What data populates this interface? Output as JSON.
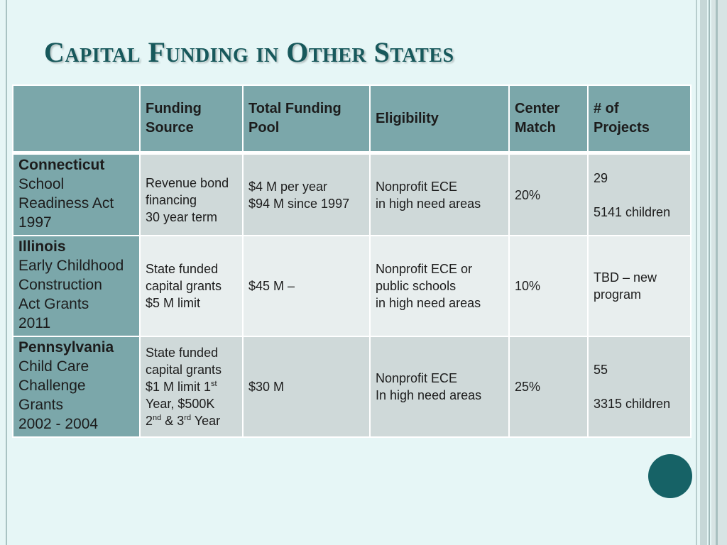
{
  "title": "Capital Funding in Other States",
  "headers": {
    "blank": "",
    "funding_source": [
      "Funding",
      "Source"
    ],
    "total_pool": [
      "Total Funding",
      "Pool"
    ],
    "eligibility": "Eligibility",
    "center_match": [
      "Center",
      "Match"
    ],
    "projects": [
      "# of",
      "Projects"
    ]
  },
  "rows": [
    {
      "state": "Connecticut",
      "program": [
        "School",
        "Readiness Act",
        "1997"
      ],
      "funding_source": [
        "Revenue bond",
        "financing",
        "30 year term"
      ],
      "total_pool": [
        "$4 M per year",
        "$94 M since 1997"
      ],
      "eligibility": [
        "Nonprofit ECE",
        "in high need areas"
      ],
      "center_match": "20%",
      "projects": [
        "29",
        "5141 children"
      ]
    },
    {
      "state": "Illinois",
      "program": [
        "Early Childhood",
        "Construction",
        "Act Grants",
        "2011"
      ],
      "funding_source": [
        "State funded",
        "capital grants",
        "$5 M limit"
      ],
      "total_pool": [
        "$45 M –"
      ],
      "eligibility": [
        "Nonprofit ECE or",
        "public schools",
        "in high need areas"
      ],
      "center_match": "10%",
      "projects": [
        "TBD – new",
        "program"
      ]
    },
    {
      "state": "Pennsylvania",
      "program": [
        "Child Care",
        "Challenge",
        "Grants",
        "2002 - 2004"
      ],
      "funding_source": {
        "line1": "State funded",
        "line2": "capital grants",
        "line3": "$1 M limit 1",
        "line3_sup": "st",
        "line4": "Year, $500K",
        "line5_a": "2",
        "line5_a_sup": "nd",
        "line5_b": " & 3",
        "line5_b_sup": "rd",
        "line5_c": " Year"
      },
      "total_pool": [
        "$30 M"
      ],
      "eligibility": [
        "Nonprofit ECE",
        "In high need areas"
      ],
      "center_match": "25%",
      "projects": [
        "55",
        "3315 children"
      ]
    }
  ],
  "colors": {
    "background": "#e6f6f6",
    "title": "#17585b",
    "header_fill": "#7ba7aa",
    "row_fill_dark": "#cfd9d9",
    "row_fill_light": "#e8eeee",
    "accent_circle": "#166266"
  }
}
